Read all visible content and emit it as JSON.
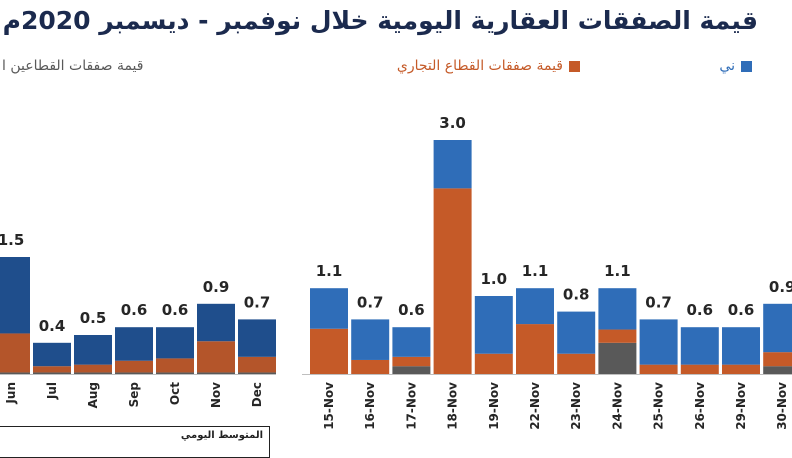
{
  "title": "قيمة الصفقات العقارية اليومية خلال نوفمبر - ديسمبر 2020م",
  "legend": [
    {
      "label": "ني",
      "color": "#2f6db8"
    },
    {
      "label": "قيمة صفقات القطاع التجاري",
      "color": "#c55a28"
    },
    {
      "label": "قيمة صفقات القطاعين ا",
      "color": "#595959"
    }
  ],
  "avg_label": "المتوسط اليومي",
  "chart_data": [
    {
      "type": "bar",
      "stacked": true,
      "categories": [
        "Jun",
        "Jul",
        "Aug",
        "Sep",
        "Oct",
        "Nov",
        "Dec"
      ],
      "totals": [
        1.5,
        0.4,
        0.5,
        0.6,
        0.6,
        0.9,
        0.7
      ],
      "total_labels": [
        "1.5",
        "0.4",
        "0.5",
        "0.6",
        "0.6",
        "0.9",
        "0.7"
      ],
      "series": [
        {
          "values": [
            0.02,
            0.02,
            0.02,
            0.02,
            0.02,
            0.02,
            0.02
          ],
          "color": "#595959"
        },
        {
          "values": [
            0.5,
            0.08,
            0.1,
            0.15,
            0.18,
            0.4,
            0.2
          ],
          "color": "#b4552a"
        },
        {
          "values": [
            0.98,
            0.3,
            0.38,
            0.43,
            0.4,
            0.48,
            0.48
          ],
          "color": "#1f4e8c"
        }
      ],
      "ylim": [
        0,
        3.0
      ],
      "grid": false
    },
    {
      "type": "bar",
      "stacked": true,
      "categories": [
        "15-Nov",
        "16-Nov",
        "17-Nov",
        "18-Nov",
        "19-Nov",
        "22-Nov",
        "23-Nov",
        "24-Nov",
        "25-Nov",
        "26-Nov",
        "29-Nov",
        "30-Nov"
      ],
      "totals": [
        1.1,
        0.7,
        0.6,
        3.0,
        1.0,
        1.1,
        0.8,
        1.1,
        0.7,
        0.6,
        0.6,
        0.9
      ],
      "total_labels": [
        "1.1",
        "0.7",
        "0.6",
        "3.0",
        "1.0",
        "1.1",
        "0.8",
        "1.1",
        "0.7",
        "0.6",
        "0.6",
        "0.9"
      ],
      "series": [
        {
          "values": [
            0.0,
            0.0,
            0.1,
            0.0,
            0.0,
            0.0,
            0.0,
            0.4,
            0.0,
            0.0,
            0.0,
            0.1
          ],
          "color": "#595959"
        },
        {
          "values": [
            0.58,
            0.18,
            0.12,
            2.38,
            0.26,
            0.64,
            0.26,
            0.17,
            0.12,
            0.12,
            0.12,
            0.18
          ],
          "color": "#c55a28"
        },
        {
          "values": [
            0.52,
            0.52,
            0.38,
            0.62,
            0.74,
            0.46,
            0.54,
            0.53,
            0.58,
            0.48,
            0.48,
            0.62
          ],
          "color": "#2f6db8"
        }
      ],
      "ylim": [
        0,
        3.0
      ],
      "grid": false
    }
  ]
}
